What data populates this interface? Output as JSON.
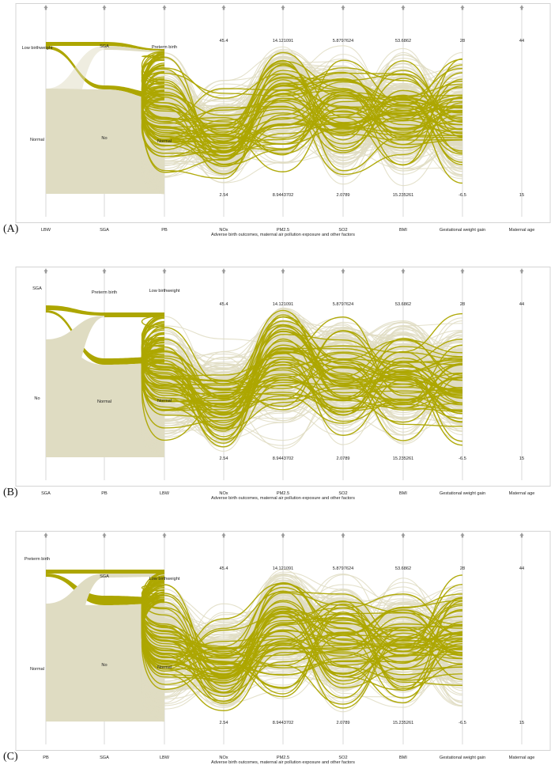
{
  "colors": {
    "highlight": "#ada600",
    "normal": "#dfdcc2",
    "axis": "#cfcfcf",
    "frame": "#d4d4d4",
    "text": "#222222"
  },
  "icons": {
    "axis_top": "arrow-up-icon"
  },
  "x_axis_title": "Adverse birth outcomes, maternal air pollution exposure and other factors",
  "continuous_axes": [
    {
      "name": "NOx",
      "max": "45.4",
      "min": "2.54"
    },
    {
      "name": "PM2.5",
      "max": "14.121091",
      "min": "8.9443702"
    },
    {
      "name": "SO2",
      "max": "5.8797624",
      "min": "2.0789"
    },
    {
      "name": "BMI",
      "max": "53.6862",
      "min": "15.235261"
    },
    {
      "name": "Gestational weight gain",
      "max": "28",
      "min": "-6.5"
    },
    {
      "name": "Maternal age",
      "max": "44",
      "min": "15"
    }
  ],
  "panels": [
    {
      "label": "(A)",
      "categorical_axes": [
        {
          "name": "LBW",
          "categories": [
            {
              "label": "Low birthweight",
              "share": 0.06
            },
            {
              "label": "Normal",
              "share": 0.94
            }
          ]
        },
        {
          "name": "SGA",
          "categories": [
            {
              "label": "SGA",
              "share": 0.1
            },
            {
              "label": "No",
              "share": 0.9
            }
          ]
        },
        {
          "name": "PB",
          "categories": [
            {
              "label": "Preterm birth",
              "share": 0.06
            },
            {
              "label": "Normal",
              "share": 0.94
            }
          ]
        }
      ]
    },
    {
      "label": "(B)",
      "categorical_axes": [
        {
          "name": "SGA",
          "categories": [
            {
              "label": "SGA",
              "share": 0.1
            },
            {
              "label": "No",
              "share": 0.9
            }
          ]
        },
        {
          "name": "PB",
          "categories": [
            {
              "label": "Preterm birth",
              "share": 0.06
            },
            {
              "label": "Normal",
              "share": 0.94
            }
          ]
        },
        {
          "name": "LBW",
          "categories": [
            {
              "label": "Low birthweight",
              "share": 0.06
            },
            {
              "label": "Normal",
              "share": 0.94
            }
          ]
        }
      ]
    },
    {
      "label": "(C)",
      "categorical_axes": [
        {
          "name": "PB",
          "categories": [
            {
              "label": "Preterm birth",
              "share": 0.06
            },
            {
              "label": "Normal",
              "share": 0.94
            }
          ]
        },
        {
          "name": "SGA",
          "categories": [
            {
              "label": "SGA",
              "share": 0.1
            },
            {
              "label": "No",
              "share": 0.9
            }
          ]
        },
        {
          "name": "LBW",
          "categories": [
            {
              "label": "Low birthweight",
              "share": 0.06
            },
            {
              "label": "Normal",
              "share": 0.94
            }
          ]
        }
      ]
    }
  ],
  "chart_data": [
    {
      "type": "parallel-sets-coordinates",
      "xlabel": "Adverse birth outcomes, maternal air pollution exposure and other factors",
      "axes": [
        "LBW",
        "SGA",
        "PB",
        "NOx",
        "PM2.5",
        "SO2",
        "BMI",
        "Gestational weight gain",
        "Maternal age"
      ],
      "highlighted_category": "Low birthweight",
      "ranges": {
        "NOx": [
          2.54,
          45.4
        ],
        "PM2.5": [
          8.9443702,
          14.121091
        ],
        "SO2": [
          2.0789,
          5.8797624
        ],
        "BMI": [
          15.235261,
          53.6862
        ],
        "Gestational weight gain": [
          -6.5,
          28
        ],
        "Maternal age": [
          15,
          44
        ]
      }
    },
    {
      "type": "parallel-sets-coordinates",
      "xlabel": "Adverse birth outcomes, maternal air pollution exposure and other factors",
      "axes": [
        "SGA",
        "PB",
        "LBW",
        "NOx",
        "PM2.5",
        "SO2",
        "BMI",
        "Gestational weight gain",
        "Maternal age"
      ],
      "highlighted_category": "SGA",
      "ranges": {
        "NOx": [
          2.54,
          45.4
        ],
        "PM2.5": [
          8.9443702,
          14.121091
        ],
        "SO2": [
          2.0789,
          5.8797624
        ],
        "BMI": [
          15.235261,
          53.6862
        ],
        "Gestational weight gain": [
          -6.5,
          28
        ],
        "Maternal age": [
          15,
          44
        ]
      }
    },
    {
      "type": "parallel-sets-coordinates",
      "xlabel": "Adverse birth outcomes, maternal air pollution exposure and other factors",
      "axes": [
        "PB",
        "SGA",
        "LBW",
        "NOx",
        "PM2.5",
        "SO2",
        "BMI",
        "Gestational weight gain",
        "Maternal age"
      ],
      "highlighted_category": "Preterm birth",
      "ranges": {
        "NOx": [
          2.54,
          45.4
        ],
        "PM2.5": [
          8.9443702,
          14.121091
        ],
        "SO2": [
          2.0789,
          5.8797624
        ],
        "BMI": [
          15.235261,
          53.6862
        ],
        "Gestational weight gain": [
          -6.5,
          28
        ],
        "Maternal age": [
          15,
          44
        ]
      }
    }
  ]
}
